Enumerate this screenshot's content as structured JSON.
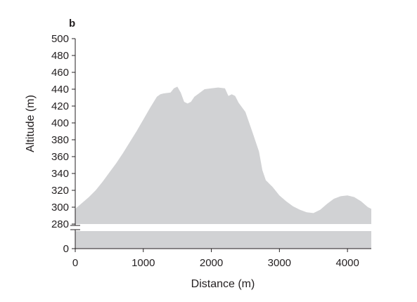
{
  "chart_data": {
    "type": "area",
    "panel_label": "b",
    "title": "",
    "xlabel": "Distance (m)",
    "ylabel": "Altitude (m)",
    "xlim": [
      0,
      4350
    ],
    "ylim_upper": [
      280,
      500
    ],
    "ylim_lower": [
      0,
      0
    ],
    "y_axis_break": true,
    "grid": false,
    "legend": "none",
    "fill_color": "#d1d2d4",
    "axis_color": "#231f20",
    "x_ticks": [
      0,
      1000,
      2000,
      3000,
      4000
    ],
    "x_tick_labels": [
      "0",
      "1000",
      "2000",
      "3000",
      "4000"
    ],
    "y_ticks_upper": [
      280,
      300,
      320,
      340,
      360,
      380,
      400,
      420,
      440,
      460,
      480,
      500
    ],
    "y_tick_labels_upper": [
      "280",
      "300",
      "320",
      "340",
      "360",
      "380",
      "400",
      "420",
      "440",
      "460",
      "480",
      "500"
    ],
    "y_ticks_lower": [
      0
    ],
    "y_tick_labels_lower": [
      "0"
    ],
    "series": [
      {
        "x": [
          0,
          100,
          200,
          300,
          400,
          500,
          600,
          700,
          800,
          900,
          1000,
          1100,
          1200,
          1250,
          1300,
          1400,
          1450,
          1500,
          1550,
          1600,
          1650,
          1700,
          1750,
          1800,
          1900,
          2000,
          2100,
          2200,
          2250,
          2300,
          2350,
          2400,
          2500,
          2600,
          2700,
          2750,
          2800,
          2900,
          3000,
          3100,
          3200,
          3300,
          3400,
          3500,
          3600,
          3700,
          3800,
          3900,
          4000,
          4100,
          4200,
          4300,
          4350
        ],
        "values": [
          298,
          305,
          312,
          320,
          330,
          341,
          352,
          364,
          377,
          390,
          404,
          418,
          431,
          434,
          435,
          436,
          441,
          443,
          436,
          425,
          423,
          425,
          431,
          434,
          440,
          441,
          442,
          441,
          432,
          434,
          432,
          424,
          413,
          390,
          366,
          344,
          332,
          324,
          314,
          307,
          301,
          297,
          294,
          293,
          297,
          304,
          310,
          313,
          314,
          312,
          307,
          300,
          298
        ]
      }
    ]
  }
}
